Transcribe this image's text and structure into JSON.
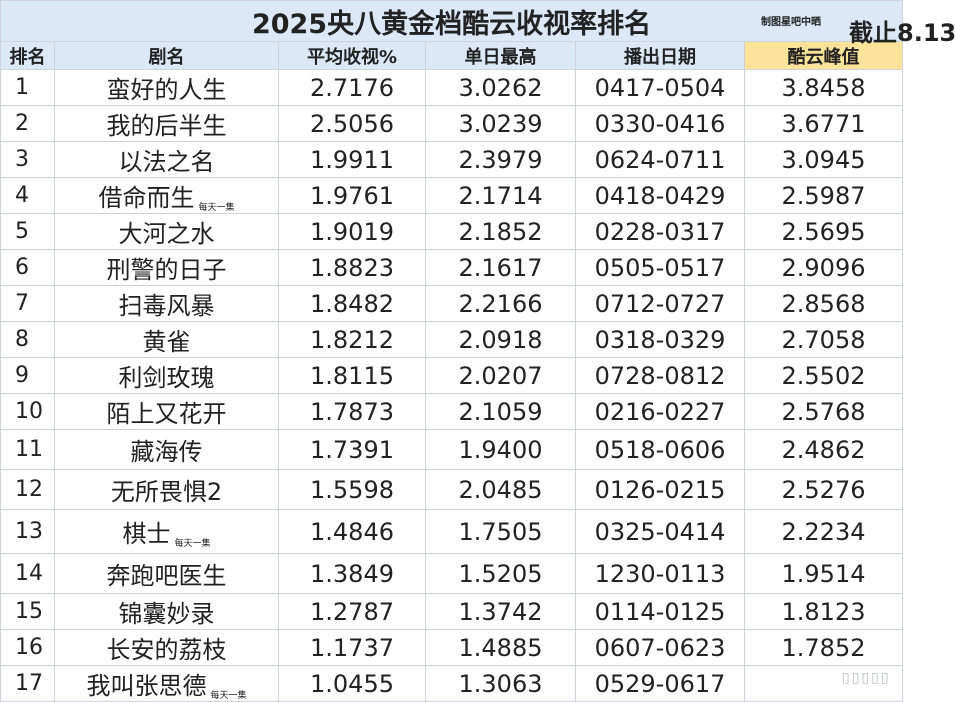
{
  "title": "2025央八黄金档酷云收视率排名",
  "credit": "制图星吧中晒",
  "cutoff": "截止8.13",
  "headers": {
    "rank": "排名",
    "name": "剧名",
    "avg": "平均收视%",
    "day_max": "单日最高",
    "air_dates": "播出日期",
    "peak": "酷云峰值"
  },
  "rows": [
    {
      "rank": "1",
      "name": "蛮好的人生",
      "note": "",
      "avg": "2.7176",
      "day_max": "3.0262",
      "dates": "0417-0504",
      "peak": "3.8458"
    },
    {
      "rank": "2",
      "name": "我的后半生",
      "note": "",
      "avg": "2.5056",
      "day_max": "3.0239",
      "dates": "0330-0416",
      "peak": "3.6771"
    },
    {
      "rank": "3",
      "name": "以法之名",
      "note": "",
      "avg": "1.9911",
      "day_max": "2.3979",
      "dates": "0624-0711",
      "peak": "3.0945"
    },
    {
      "rank": "4",
      "name": "借命而生",
      "note": "每天一集",
      "avg": "1.9761",
      "day_max": "2.1714",
      "dates": "0418-0429",
      "peak": "2.5987"
    },
    {
      "rank": "5",
      "name": "大河之水",
      "note": "",
      "avg": "1.9019",
      "day_max": "2.1852",
      "dates": "0228-0317",
      "peak": "2.5695"
    },
    {
      "rank": "6",
      "name": "刑警的日子",
      "note": "",
      "avg": "1.8823",
      "day_max": "2.1617",
      "dates": "0505-0517",
      "peak": "2.9096"
    },
    {
      "rank": "7",
      "name": "扫毒风暴",
      "note": "",
      "avg": "1.8482",
      "day_max": "2.2166",
      "dates": "0712-0727",
      "peak": "2.8568"
    },
    {
      "rank": "8",
      "name": "黄雀",
      "note": "",
      "avg": "1.8212",
      "day_max": "2.0918",
      "dates": "0318-0329",
      "peak": "2.7058"
    },
    {
      "rank": "9",
      "name": "利剑玫瑰",
      "note": "",
      "avg": "1.8115",
      "day_max": "2.0207",
      "dates": "0728-0812",
      "peak": "2.5502"
    },
    {
      "rank": "10",
      "name": "陌上又花开",
      "note": "",
      "avg": "1.7873",
      "day_max": "2.1059",
      "dates": "0216-0227",
      "peak": "2.5768"
    },
    {
      "rank": "11",
      "name": "藏海传",
      "note": "",
      "avg": "1.7391",
      "day_max": "1.9400",
      "dates": "0518-0606",
      "peak": "2.4862"
    },
    {
      "rank": "12",
      "name": "无所畏惧2",
      "note": "",
      "avg": "1.5598",
      "day_max": "2.0485",
      "dates": "0126-0215",
      "peak": "2.5276"
    },
    {
      "rank": "13",
      "name": "棋士",
      "note": "每天一集",
      "avg": "1.4846",
      "day_max": "1.7505",
      "dates": "0325-0414",
      "peak": "2.2234"
    },
    {
      "rank": "14",
      "name": "奔跑吧医生",
      "note": "",
      "avg": "1.3849",
      "day_max": "1.5205",
      "dates": "1230-0113",
      "peak": "1.9514"
    },
    {
      "rank": "15",
      "name": "锦囊妙录",
      "note": "",
      "avg": "1.2787",
      "day_max": "1.3742",
      "dates": "0114-0125",
      "peak": "1.8123"
    },
    {
      "rank": "16",
      "name": "长安的荔枝",
      "note": "",
      "avg": "1.1737",
      "day_max": "1.4885",
      "dates": "0607-0623",
      "peak": "1.7852"
    },
    {
      "rank": "17",
      "name": "我叫张思德",
      "note": "每天一集",
      "avg": "1.0455",
      "day_max": "1.3063",
      "dates": "0529-0617",
      "peak": ""
    }
  ],
  "watermark": "▯▯▯▯▯"
}
